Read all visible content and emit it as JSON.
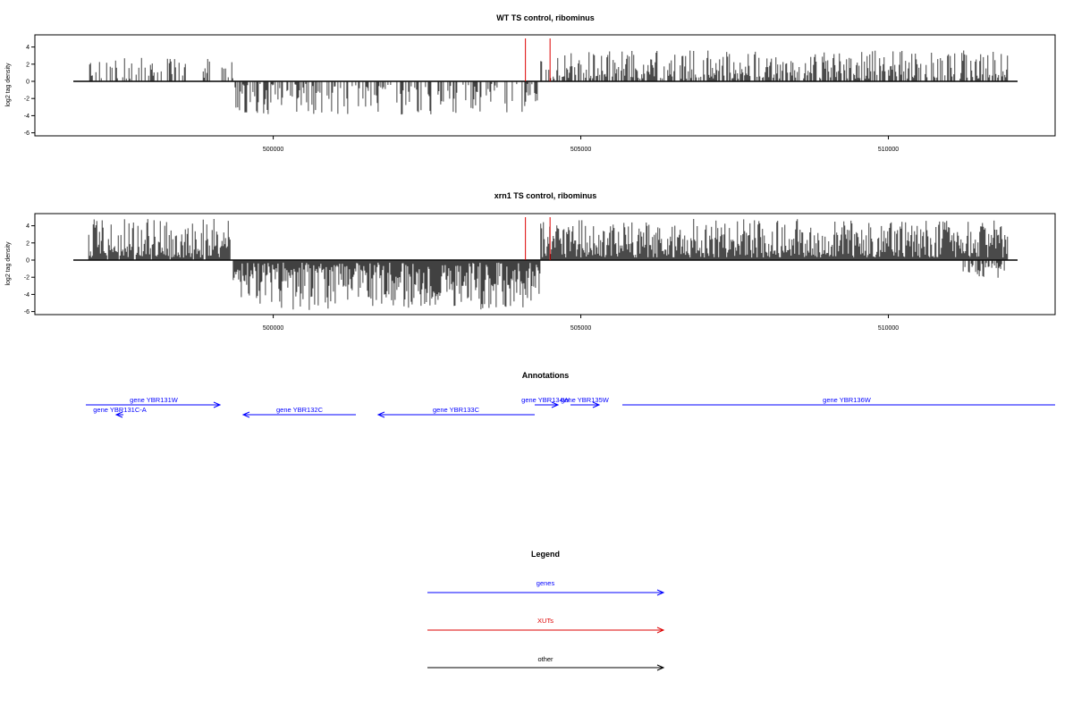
{
  "chart_data": [
    {
      "type": "bar",
      "title": "WT TS control, ribominus",
      "ylabel": "log2 tag density",
      "xlabel": "",
      "xlim": [
        496750,
        512100
      ],
      "ylim": [
        -6,
        5.3
      ],
      "x_ticks": [
        500000,
        505000,
        510000
      ],
      "x_tick_labels": [
        "500000",
        "505000",
        "510000"
      ],
      "y_ticks": [
        -6,
        -4,
        -2,
        0,
        2,
        4
      ],
      "y_tick_labels": [
        "-6",
        "-4",
        "-2",
        "0",
        "2",
        "4"
      ],
      "markers": [
        504100,
        504500
      ],
      "marker_color": "#dd0000",
      "segments": [
        {
          "from": 497000,
          "to": 499350,
          "sign": 1,
          "density": 0.35,
          "max": 2.8
        },
        {
          "from": 499350,
          "to": 504300,
          "sign": -1,
          "density": 0.45,
          "max": 3.9
        },
        {
          "from": 504350,
          "to": 511950,
          "sign": 1,
          "density": 0.6,
          "max": 3.6
        },
        {
          "from": 511800,
          "to": 511900,
          "sign": -1,
          "density": 0.3,
          "max": 2.0
        }
      ]
    },
    {
      "type": "bar",
      "title": "xrn1 TS control, ribominus",
      "ylabel": "log2 tag density",
      "xlabel": "",
      "xlim": [
        496750,
        512100
      ],
      "ylim": [
        -6,
        5.3
      ],
      "x_ticks": [
        500000,
        505000,
        510000
      ],
      "x_tick_labels": [
        "500000",
        "505000",
        "510000"
      ],
      "y_ticks": [
        -6,
        -4,
        -2,
        0,
        2,
        4
      ],
      "y_tick_labels": [
        "-6",
        "-4",
        "-2",
        "0",
        "2",
        "4"
      ],
      "markers": [
        504100,
        504500
      ],
      "marker_color": "#dd0000",
      "segments": [
        {
          "from": 497000,
          "to": 499300,
          "sign": 1,
          "density": 0.9,
          "max": 4.8
        },
        {
          "from": 499350,
          "to": 504350,
          "sign": -1,
          "density": 1.0,
          "max": 5.8
        },
        {
          "from": 504350,
          "to": 511950,
          "sign": 1,
          "density": 1.0,
          "max": 4.8
        },
        {
          "from": 511200,
          "to": 511950,
          "sign": -1,
          "density": 0.5,
          "max": 2.3
        }
      ]
    }
  ],
  "annotations": {
    "title": "Annotations",
    "genes": [
      {
        "label": "gene YBR131W",
        "strand": "+",
        "color": "#0000ff"
      },
      {
        "label": "gene YBR131C-A",
        "strand": "-",
        "color": "#0000ff"
      },
      {
        "label": "gene YBR132C",
        "strand": "-",
        "color": "#0000ff"
      },
      {
        "label": "gene YBR133C",
        "strand": "-",
        "color": "#0000ff"
      },
      {
        "label": "gene YBR134W",
        "strand": "+",
        "color": "#0000ff"
      },
      {
        "label": "gene YBR135W",
        "strand": "+",
        "color": "#0000ff"
      },
      {
        "label": "gene YBR136W",
        "strand": "+",
        "color": "#0000ff"
      }
    ]
  },
  "legend": {
    "title": "Legend",
    "items": [
      {
        "label": "genes",
        "color": "#0000ff"
      },
      {
        "label": "XUTs",
        "color": "#dd0000"
      },
      {
        "label": "other",
        "color": "#000000"
      }
    ]
  }
}
